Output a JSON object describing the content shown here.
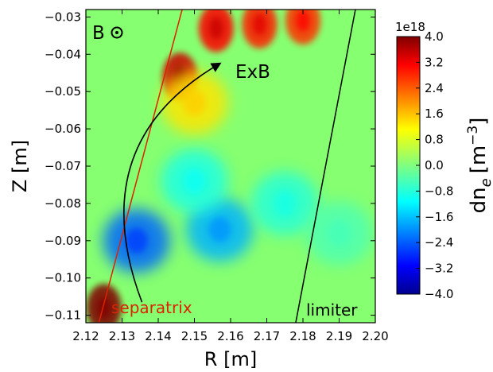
{
  "chart_data": {
    "type": "heatmap",
    "title": "",
    "xlabel": "R [m]",
    "ylabel": "Z [m]",
    "xlim": [
      2.12,
      2.2
    ],
    "ylim": [
      -0.112,
      -0.028
    ],
    "xticks": [
      "2.12",
      "2.13",
      "2.14",
      "2.15",
      "2.16",
      "2.17",
      "2.18",
      "2.19",
      "2.20"
    ],
    "xtick_values": [
      2.12,
      2.13,
      2.14,
      2.15,
      2.16,
      2.17,
      2.18,
      2.19,
      2.2
    ],
    "yticks": [
      "−0.03",
      "−0.04",
      "−0.05",
      "−0.06",
      "−0.07",
      "−0.08",
      "−0.09",
      "−0.10",
      "−0.11"
    ],
    "ytick_values": [
      -0.03,
      -0.04,
      -0.05,
      -0.06,
      -0.07,
      -0.08,
      -0.09,
      -0.1,
      -0.11
    ],
    "grid": false,
    "colormap": "jet",
    "colorbar": {
      "label_main": "dn",
      "label_sub": "e",
      "label_unit": "[m",
      "label_exp": "−3",
      "label_close": "]",
      "scale": "1e18",
      "range": [
        -4.0,
        4.0
      ],
      "ticks": [
        "4.0",
        "3.2",
        "2.4",
        "1.6",
        "0.8",
        "0.0",
        "−0.8",
        "−1.6",
        "−2.4",
        "−3.2",
        "−4.0"
      ],
      "tick_values": [
        4.0,
        3.2,
        2.4,
        1.6,
        0.8,
        0.0,
        -0.8,
        -1.6,
        -2.4,
        -3.2,
        -4.0
      ]
    },
    "field_features": [
      {
        "kind": "positive",
        "r": 2.146,
        "z": -0.046,
        "value": 3.4
      },
      {
        "kind": "positive",
        "r": 2.156,
        "z": -0.033,
        "value": 3.0
      },
      {
        "kind": "positive",
        "r": 2.168,
        "z": -0.032,
        "value": 2.8
      },
      {
        "kind": "positive",
        "r": 2.18,
        "z": -0.031,
        "value": 2.6
      },
      {
        "kind": "positive",
        "r": 2.15,
        "z": -0.053,
        "value": 1.2
      },
      {
        "kind": "positive",
        "r": 2.125,
        "z": -0.108,
        "value": 4.0
      },
      {
        "kind": "negative",
        "r": 2.134,
        "z": -0.09,
        "value": -2.2
      },
      {
        "kind": "negative",
        "r": 2.157,
        "z": -0.087,
        "value": -1.6
      },
      {
        "kind": "negative",
        "r": 2.15,
        "z": -0.074,
        "value": -0.8
      },
      {
        "kind": "negative",
        "r": 2.175,
        "z": -0.08,
        "value": -0.7
      },
      {
        "kind": "negative",
        "r": 2.19,
        "z": -0.088,
        "value": -0.4
      }
    ],
    "lines": [
      {
        "name": "separatrix",
        "color": "#dd2200",
        "points": [
          [
            2.1236,
            -0.112
          ],
          [
            2.1466,
            -0.028
          ]
        ]
      },
      {
        "name": "limiter",
        "color": "#000000",
        "points": [
          [
            2.178,
            -0.112
          ],
          [
            2.1945,
            -0.028
          ]
        ]
      }
    ],
    "annotations": {
      "field": "B",
      "exb": "ExB",
      "separatrix": "separatrix",
      "limiter": "limiter"
    },
    "arrow": {
      "from": [
        2.1355,
        -0.1065
      ],
      "ctrl": [
        2.119,
        -0.064
      ],
      "to": [
        2.157,
        -0.0425
      ]
    }
  }
}
